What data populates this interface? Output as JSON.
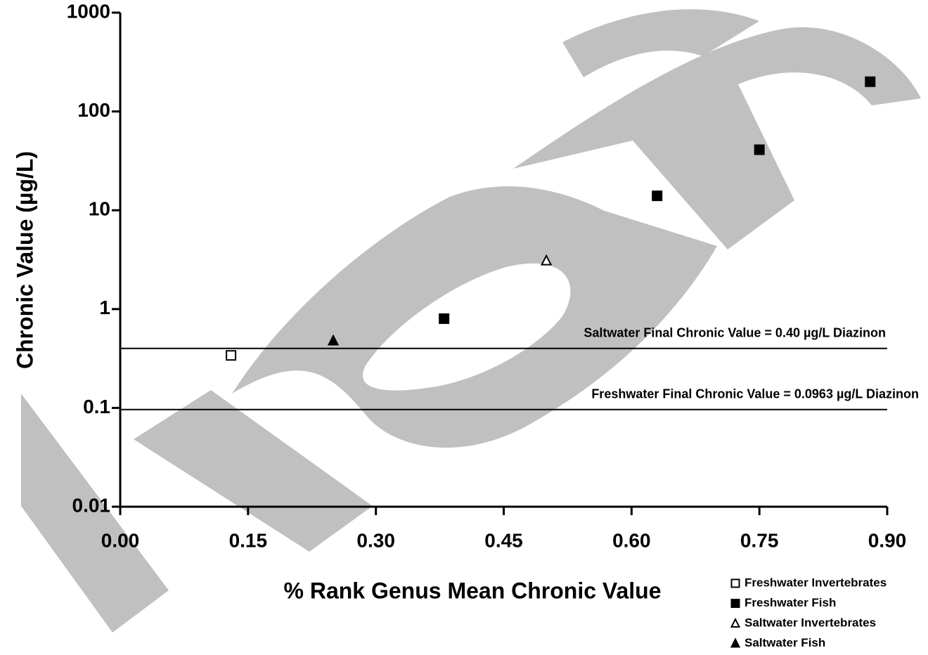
{
  "chart_data": {
    "type": "scatter",
    "x_label": "% Rank Genus Mean Chronic Value",
    "y_label": "Chronic Value (µg/L)",
    "xlim": [
      0,
      0.9
    ],
    "xticks": [
      {
        "value": 0,
        "label": "0.00"
      },
      {
        "value": 0.15,
        "label": "0.15"
      },
      {
        "value": 0.3,
        "label": "0.30"
      },
      {
        "value": 0.45,
        "label": "0.45"
      },
      {
        "value": 0.6,
        "label": "0.60"
      },
      {
        "value": 0.75,
        "label": "0.75"
      },
      {
        "value": 0.9,
        "label": "0.90"
      }
    ],
    "ylim": [
      0.01,
      1000
    ],
    "yticks": [
      0.01,
      0.1,
      1,
      10,
      100,
      1000
    ],
    "log_y": true,
    "series": [
      {
        "name": "Freshwater Invertebrates",
        "marker": "square",
        "filled": false,
        "color": "#000000",
        "x": [
          0.13
        ],
        "values": [
          0.34
        ]
      },
      {
        "name": "Freshwater Fish",
        "marker": "square",
        "filled": true,
        "color": "#000000",
        "x": [
          0.38,
          0.63,
          0.75,
          0.88
        ],
        "values": [
          0.8,
          14,
          41,
          200
        ]
      },
      {
        "name": "Saltwater Invertebrates",
        "marker": "triangle",
        "filled": false,
        "color": "#000000",
        "x": [
          0.5
        ],
        "values": [
          3.1
        ]
      },
      {
        "name": "Saltwater Fish",
        "marker": "triangle",
        "filled": true,
        "color": "#000000",
        "x": [
          0.25
        ],
        "values": [
          0.48
        ]
      }
    ],
    "reference_lines": [
      {
        "value": 0.4,
        "label": "Saltwater Final Chronic Value = 0.40 µg/L Diazinon"
      },
      {
        "value": 0.0963,
        "label": "Freshwater Final Chronic Value = 0.0963 µg/L Diazinon"
      }
    ]
  }
}
